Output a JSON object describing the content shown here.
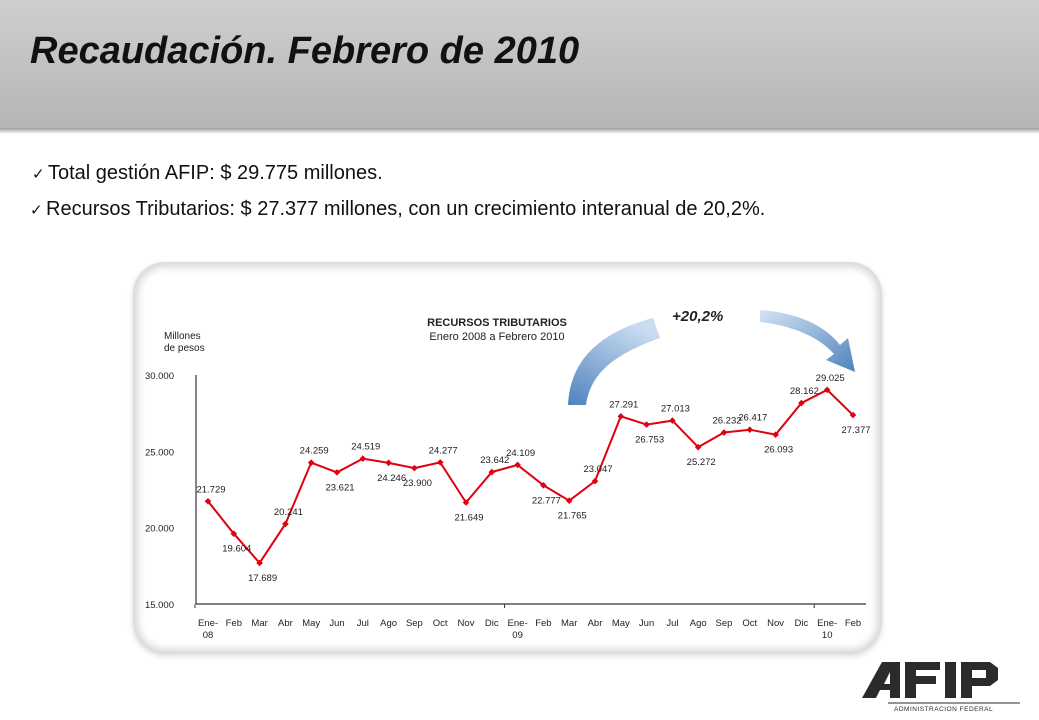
{
  "page": {
    "title": "Recaudación. Febrero de 2010",
    "bullets": [
      {
        "text": "Total gestión AFIP: $ 29.775 millones."
      },
      {
        "text": "Recursos Tributarios: $ 27.377 millones, con un crecimiento interanual de 20,2%."
      }
    ]
  },
  "logo": {
    "name": "AFIP",
    "subtitle": "ADMINISTRACION FEDERAL"
  },
  "chart_data": {
    "type": "line",
    "title": "RECURSOS TRIBUTARIOS",
    "subtitle": "Enero 2008 a Febrero 2010",
    "ylabel": "Millones de pesos",
    "ylabel_lines": [
      "Millones",
      "de pesos"
    ],
    "annotation": "+20,2%",
    "ylim": [
      15000,
      30000
    ],
    "yticks": [
      15000,
      20000,
      25000,
      30000
    ],
    "ytick_labels": [
      "15.000",
      "20.000",
      "25.000",
      "30.000"
    ],
    "grid": false,
    "color": "#e0000e",
    "categories": [
      "Ene-08",
      "Feb",
      "Mar",
      "Abr",
      "May",
      "Jun",
      "Jul",
      "Ago",
      "Sep",
      "Oct",
      "Nov",
      "Dic",
      "Ene-09",
      "Feb",
      "Mar",
      "Abr",
      "May",
      "Jun",
      "Jul",
      "Ago",
      "Sep",
      "Oct",
      "Nov",
      "Dic",
      "Ene-10",
      "Feb"
    ],
    "category_lines": [
      [
        "Ene-",
        "08"
      ],
      [
        "Feb"
      ],
      [
        "Mar"
      ],
      [
        "Abr"
      ],
      [
        "May"
      ],
      [
        "Jun"
      ],
      [
        "Jul"
      ],
      [
        "Ago"
      ],
      [
        "Sep"
      ],
      [
        "Oct"
      ],
      [
        "Nov"
      ],
      [
        "Dic"
      ],
      [
        "Ene-",
        "09"
      ],
      [
        "Feb"
      ],
      [
        "Mar"
      ],
      [
        "Abr"
      ],
      [
        "May"
      ],
      [
        "Jun"
      ],
      [
        "Jul"
      ],
      [
        "Ago"
      ],
      [
        "Sep"
      ],
      [
        "Oct"
      ],
      [
        "Nov"
      ],
      [
        "Dic"
      ],
      [
        "Ene-",
        "10"
      ],
      [
        "Feb"
      ]
    ],
    "values": [
      21729,
      19604,
      17689,
      20241,
      24259,
      23621,
      24519,
      24246,
      23900,
      24277,
      21649,
      23642,
      24109,
      22777,
      21765,
      23047,
      27291,
      26753,
      27013,
      25272,
      26232,
      26417,
      26093,
      28162,
      29025,
      27377
    ],
    "value_labels": [
      "21.729",
      "19.604",
      "17.689",
      "20.241",
      "24.259",
      "23.621",
      "24.519",
      "24.246",
      "23.900",
      "24.277",
      "21.649",
      "23.642",
      "24.109",
      "22.777",
      "21.765",
      "23.047",
      "27.291",
      "26.753",
      "27.013",
      "25.272",
      "26.232",
      "26.417",
      "26.093",
      "28.162",
      "29.025",
      "27.377"
    ]
  }
}
